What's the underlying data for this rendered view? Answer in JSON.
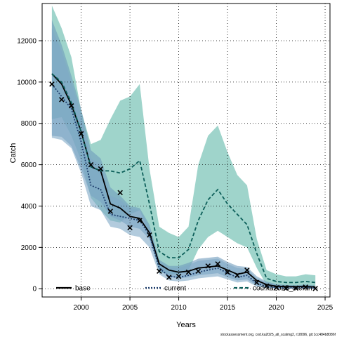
{
  "chart_data": {
    "type": "line",
    "title": "",
    "xlabel": "Years",
    "ylabel": "Catch",
    "xlim": [
      1996,
      2025.5
    ],
    "ylim": [
      -400,
      13800
    ],
    "xticks": [
      2000,
      2005,
      2010,
      2015,
      2020,
      2025
    ],
    "yticks": [
      0,
      2000,
      4000,
      6000,
      8000,
      10000,
      12000
    ],
    "xtick_labels": [
      "2000",
      "2005",
      "2010",
      "2015",
      "2020",
      "2025"
    ],
    "ytick_labels": [
      "0",
      "2000",
      "4000",
      "6000",
      "8000",
      "10000",
      "12000"
    ],
    "grid": true,
    "legend_position": "bottom",
    "years": [
      1997,
      1998,
      1999,
      2000,
      2001,
      2002,
      2003,
      2004,
      2005,
      2006,
      2007,
      2008,
      2009,
      2010,
      2011,
      2012,
      2013,
      2014,
      2015,
      2016,
      2017,
      2018,
      2019,
      2020,
      2021,
      2022,
      2023,
      2024
    ],
    "series": [
      {
        "name": "base",
        "color": "#000000",
        "line_style": "solid",
        "values": [
          10400,
          9900,
          8900,
          7600,
          5900,
          5700,
          4100,
          3900,
          3500,
          3400,
          2700,
          1200,
          900,
          800,
          850,
          1000,
          1050,
          1100,
          900,
          700,
          800,
          400,
          200,
          120,
          100,
          100,
          110,
          80
        ],
        "band_lower": [
          7400,
          7350,
          6900,
          5800,
          4500,
          4200,
          3500,
          3300,
          3000,
          2900,
          2400,
          900,
          600,
          500,
          550,
          650,
          700,
          750,
          550,
          400,
          450,
          150,
          50,
          20,
          10,
          10,
          20,
          5
        ],
        "band_upper": [
          13000,
          11800,
          10300,
          8700,
          6700,
          6300,
          4900,
          4500,
          4000,
          3900,
          3100,
          1400,
          1100,
          1100,
          1250,
          1450,
          1500,
          1550,
          1300,
          1100,
          1050,
          600,
          350,
          220,
          180,
          170,
          200,
          150
        ],
        "band_color": "#6f9bbd"
      },
      {
        "name": "current",
        "color": "#1f3f6e",
        "line_style": "dotted",
        "values": [
          9900,
          9300,
          8700,
          7100,
          5000,
          4800,
          3600,
          3500,
          3400,
          3300,
          2600,
          1000,
          600,
          550,
          650,
          800,
          900,
          1000,
          750,
          550,
          650,
          250,
          120,
          60,
          40,
          40,
          60,
          30
        ],
        "band_lower": [
          7300,
          7200,
          6800,
          5600,
          4000,
          3800,
          3000,
          2900,
          2600,
          2500,
          2000,
          700,
          400,
          350,
          400,
          500,
          550,
          600,
          450,
          300,
          350,
          100,
          30,
          10,
          5,
          5,
          10,
          2
        ],
        "band_upper": [
          12600,
          11500,
          10000,
          8400,
          6300,
          6000,
          4500,
          4300,
          3900,
          3800,
          3000,
          1300,
          1000,
          1000,
          1150,
          1350,
          1400,
          1450,
          1200,
          1000,
          950,
          500,
          300,
          180,
          150,
          140,
          160,
          120
        ],
        "band_color": "#7fa9c7"
      },
      {
        "name": "cod.ka2025_stefan",
        "color": "#0d5f5a",
        "line_style": "dashed",
        "values": [
          10400,
          10000,
          9000,
          7600,
          5900,
          5700,
          5700,
          5600,
          5800,
          6200,
          4100,
          1800,
          1500,
          1500,
          1900,
          3300,
          4300,
          4800,
          4100,
          3600,
          3100,
          1700,
          500,
          350,
          300,
          300,
          350,
          300
        ],
        "band_lower": [
          8200,
          8300,
          7400,
          6200,
          4400,
          3800,
          3300,
          3200,
          3600,
          3800,
          2600,
          800,
          700,
          700,
          900,
          1900,
          2500,
          2800,
          2500,
          2200,
          2000,
          1000,
          180,
          100,
          80,
          80,
          100,
          80
        ],
        "band_upper": [
          13700,
          12600,
          11200,
          8600,
          7000,
          7200,
          8200,
          9100,
          9300,
          9900,
          5800,
          3000,
          2700,
          2500,
          3000,
          6000,
          7400,
          7900,
          6600,
          5500,
          5000,
          2400,
          900,
          700,
          600,
          600,
          700,
          650
        ],
        "band_color": "#5fb7a8"
      }
    ],
    "observed": {
      "marker": "x",
      "x": [
        1997,
        1998,
        1999,
        2000,
        2001,
        2002,
        2003,
        2004,
        2005,
        2006,
        2007,
        2008,
        2009,
        2010,
        2011,
        2012,
        2013,
        2014,
        2015,
        2016,
        2017,
        2018,
        2019,
        2020,
        2021,
        2022,
        2023,
        2024
      ],
      "y": [
        9900,
        9150,
        8850,
        7500,
        6000,
        5800,
        3750,
        4650,
        2950,
        3300,
        2600,
        850,
        550,
        600,
        800,
        850,
        1100,
        1200,
        800,
        650,
        900,
        300,
        130,
        50,
        20,
        30,
        80,
        10
      ]
    },
    "footer": "stockassessment.org, cod.ka2025_all_scalmg2, r18096, git:1cc484b8086f"
  }
}
